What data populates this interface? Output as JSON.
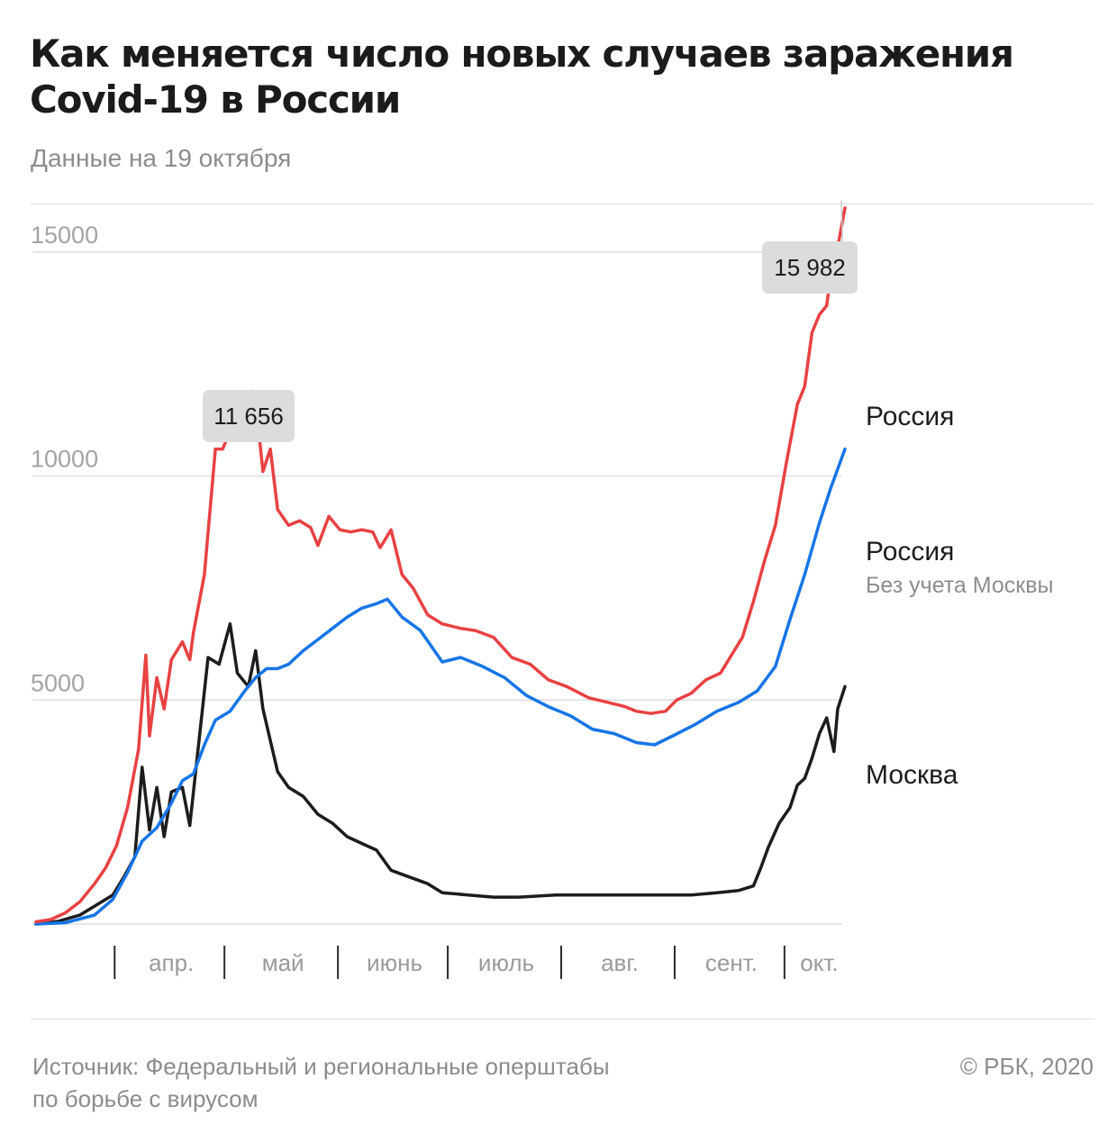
{
  "title_lines": [
    "Как меняется число новых случаев заражения",
    "Covid-19 в России"
  ],
  "subtitle": "Данные на 19 октября",
  "source_lines": [
    "Источник: Федеральный и региональные оперштабы",
    "по борьбе с вирусом"
  ],
  "copyright": "© РБК, 2020",
  "chart_data": {
    "type": "line",
    "title": "Как меняется число новых случаев заражения Covid-19 в России",
    "subtitle": "Данные на 19 октября",
    "ylim": [
      0,
      16000
    ],
    "y_ticks": [
      {
        "value": 5000,
        "label": "5000"
      },
      {
        "value": 10000,
        "label": "10000"
      },
      {
        "value": 15000,
        "label": "15000"
      }
    ],
    "grid": true,
    "x_range": [
      "2020-03-12",
      "2020-10-19"
    ],
    "month_labels": [
      {
        "label": "апр.",
        "start": "2020-04-01",
        "end": "2020-05-01"
      },
      {
        "label": "май",
        "start": "2020-05-01",
        "end": "2020-06-01"
      },
      {
        "label": "июнь",
        "start": "2020-06-01",
        "end": "2020-07-01"
      },
      {
        "label": "июль",
        "start": "2020-07-01",
        "end": "2020-08-01"
      },
      {
        "label": "авг.",
        "start": "2020-08-01",
        "end": "2020-09-01"
      },
      {
        "label": "сент.",
        "start": "2020-09-01",
        "end": "2020-10-01"
      },
      {
        "label": "окт.",
        "start": "2020-10-01",
        "end": "2020-10-19"
      }
    ],
    "series": [
      {
        "name": "Россия",
        "sublabel": "",
        "color": "#e84142",
        "points": [
          [
            "2020-03-12",
            50
          ],
          [
            "2020-03-16",
            100
          ],
          [
            "2020-03-20",
            250
          ],
          [
            "2020-03-24",
            500
          ],
          [
            "2020-03-28",
            900
          ],
          [
            "2020-03-31",
            1250
          ],
          [
            "2020-04-03",
            1750
          ],
          [
            "2020-04-06",
            2600
          ],
          [
            "2020-04-09",
            3900
          ],
          [
            "2020-04-11",
            6000
          ],
          [
            "2020-04-12",
            4200
          ],
          [
            "2020-04-14",
            5500
          ],
          [
            "2020-04-16",
            4800
          ],
          [
            "2020-04-18",
            5900
          ],
          [
            "2020-04-21",
            6300
          ],
          [
            "2020-04-23",
            5900
          ],
          [
            "2020-04-24",
            6500
          ],
          [
            "2020-04-27",
            7800
          ],
          [
            "2020-04-30",
            10600
          ],
          [
            "2020-05-02",
            10600
          ],
          [
            "2020-05-05",
            11200
          ],
          [
            "2020-05-07",
            10800
          ],
          [
            "2020-05-09",
            11300
          ],
          [
            "2020-05-11",
            11656
          ],
          [
            "2020-05-13",
            10100
          ],
          [
            "2020-05-15",
            10600
          ],
          [
            "2020-05-17",
            9250
          ],
          [
            "2020-05-20",
            8900
          ],
          [
            "2020-05-23",
            9000
          ],
          [
            "2020-05-26",
            8850
          ],
          [
            "2020-05-28",
            8450
          ],
          [
            "2020-05-31",
            9100
          ],
          [
            "2020-06-03",
            8800
          ],
          [
            "2020-06-06",
            8750
          ],
          [
            "2020-06-09",
            8800
          ],
          [
            "2020-06-12",
            8750
          ],
          [
            "2020-06-14",
            8400
          ],
          [
            "2020-06-17",
            8800
          ],
          [
            "2020-06-20",
            7800
          ],
          [
            "2020-06-23",
            7500
          ],
          [
            "2020-06-27",
            6900
          ],
          [
            "2020-07-01",
            6700
          ],
          [
            "2020-07-06",
            6600
          ],
          [
            "2020-07-10",
            6550
          ],
          [
            "2020-07-15",
            6400
          ],
          [
            "2020-07-20",
            5950
          ],
          [
            "2020-07-25",
            5800
          ],
          [
            "2020-07-30",
            5450
          ],
          [
            "2020-08-04",
            5300
          ],
          [
            "2020-08-10",
            5050
          ],
          [
            "2020-08-15",
            4950
          ],
          [
            "2020-08-20",
            4850
          ],
          [
            "2020-08-23",
            4750
          ],
          [
            "2020-08-27",
            4700
          ],
          [
            "2020-08-31",
            4750
          ],
          [
            "2020-09-03",
            5000
          ],
          [
            "2020-09-07",
            5150
          ],
          [
            "2020-09-11",
            5450
          ],
          [
            "2020-09-15",
            5600
          ],
          [
            "2020-09-18",
            6000
          ],
          [
            "2020-09-21",
            6400
          ],
          [
            "2020-09-24",
            7200
          ],
          [
            "2020-09-27",
            8100
          ],
          [
            "2020-09-30",
            8900
          ],
          [
            "2020-10-03",
            10300
          ],
          [
            "2020-10-06",
            11600
          ],
          [
            "2020-10-08",
            12000
          ],
          [
            "2020-10-10",
            13200
          ],
          [
            "2020-10-12",
            13600
          ],
          [
            "2020-10-14",
            13800
          ],
          [
            "2020-10-15",
            14400
          ],
          [
            "2020-10-17",
            15100
          ],
          [
            "2020-10-19",
            15982
          ]
        ]
      },
      {
        "name": "Россия",
        "sublabel": "Без учета Москвы",
        "color": "#1775e6",
        "points": [
          [
            "2020-03-12",
            0
          ],
          [
            "2020-03-20",
            30
          ],
          [
            "2020-03-28",
            200
          ],
          [
            "2020-04-02",
            550
          ],
          [
            "2020-04-06",
            1150
          ],
          [
            "2020-04-10",
            1850
          ],
          [
            "2020-04-14",
            2150
          ],
          [
            "2020-04-18",
            2700
          ],
          [
            "2020-04-21",
            3200
          ],
          [
            "2020-04-24",
            3350
          ],
          [
            "2020-04-27",
            4000
          ],
          [
            "2020-04-30",
            4550
          ],
          [
            "2020-05-04",
            4750
          ],
          [
            "2020-05-08",
            5200
          ],
          [
            "2020-05-11",
            5500
          ],
          [
            "2020-05-14",
            5700
          ],
          [
            "2020-05-17",
            5700
          ],
          [
            "2020-05-20",
            5800
          ],
          [
            "2020-05-24",
            6100
          ],
          [
            "2020-05-28",
            6350
          ],
          [
            "2020-06-01",
            6600
          ],
          [
            "2020-06-05",
            6850
          ],
          [
            "2020-06-09",
            7050
          ],
          [
            "2020-06-13",
            7150
          ],
          [
            "2020-06-16",
            7250
          ],
          [
            "2020-06-20",
            6850
          ],
          [
            "2020-06-25",
            6550
          ],
          [
            "2020-07-01",
            5850
          ],
          [
            "2020-07-06",
            5950
          ],
          [
            "2020-07-12",
            5750
          ],
          [
            "2020-07-18",
            5500
          ],
          [
            "2020-07-24",
            5100
          ],
          [
            "2020-07-30",
            4850
          ],
          [
            "2020-08-05",
            4650
          ],
          [
            "2020-08-11",
            4350
          ],
          [
            "2020-08-17",
            4250
          ],
          [
            "2020-08-23",
            4050
          ],
          [
            "2020-08-28",
            4000
          ],
          [
            "2020-09-02",
            4200
          ],
          [
            "2020-09-08",
            4450
          ],
          [
            "2020-09-14",
            4750
          ],
          [
            "2020-09-20",
            4950
          ],
          [
            "2020-09-25",
            5200
          ],
          [
            "2020-09-30",
            5750
          ],
          [
            "2020-10-04",
            6800
          ],
          [
            "2020-10-08",
            7800
          ],
          [
            "2020-10-12",
            8950
          ],
          [
            "2020-10-15",
            9700
          ],
          [
            "2020-10-19",
            10600
          ]
        ]
      },
      {
        "name": "Москва",
        "sublabel": "",
        "color": "#1c1c1c",
        "points": [
          [
            "2020-03-12",
            0
          ],
          [
            "2020-03-18",
            60
          ],
          [
            "2020-03-24",
            200
          ],
          [
            "2020-03-29",
            450
          ],
          [
            "2020-04-02",
            650
          ],
          [
            "2020-04-05",
            1050
          ],
          [
            "2020-04-08",
            1500
          ],
          [
            "2020-04-10",
            3500
          ],
          [
            "2020-04-12",
            2100
          ],
          [
            "2020-04-14",
            3050
          ],
          [
            "2020-04-16",
            1950
          ],
          [
            "2020-04-18",
            2950
          ],
          [
            "2020-04-21",
            3050
          ],
          [
            "2020-04-23",
            2200
          ],
          [
            "2020-04-25",
            3700
          ],
          [
            "2020-04-28",
            5950
          ],
          [
            "2020-05-01",
            5800
          ],
          [
            "2020-05-04",
            6700
          ],
          [
            "2020-05-06",
            5600
          ],
          [
            "2020-05-09",
            5300
          ],
          [
            "2020-05-11",
            6100
          ],
          [
            "2020-05-13",
            4800
          ],
          [
            "2020-05-17",
            3400
          ],
          [
            "2020-05-20",
            3050
          ],
          [
            "2020-05-24",
            2850
          ],
          [
            "2020-05-28",
            2450
          ],
          [
            "2020-06-01",
            2250
          ],
          [
            "2020-06-05",
            1950
          ],
          [
            "2020-06-09",
            1800
          ],
          [
            "2020-06-13",
            1650
          ],
          [
            "2020-06-17",
            1200
          ],
          [
            "2020-06-22",
            1050
          ],
          [
            "2020-06-27",
            900
          ],
          [
            "2020-07-01",
            700
          ],
          [
            "2020-07-08",
            650
          ],
          [
            "2020-07-15",
            600
          ],
          [
            "2020-07-22",
            600
          ],
          [
            "2020-08-01",
            650
          ],
          [
            "2020-08-10",
            650
          ],
          [
            "2020-08-20",
            650
          ],
          [
            "2020-08-31",
            650
          ],
          [
            "2020-09-07",
            650
          ],
          [
            "2020-09-14",
            700
          ],
          [
            "2020-09-20",
            750
          ],
          [
            "2020-09-24",
            850
          ],
          [
            "2020-09-26",
            1250
          ],
          [
            "2020-09-28",
            1700
          ],
          [
            "2020-10-01",
            2250
          ],
          [
            "2020-10-04",
            2600
          ],
          [
            "2020-10-06",
            3100
          ],
          [
            "2020-10-08",
            3250
          ],
          [
            "2020-10-10",
            3700
          ],
          [
            "2020-10-12",
            4250
          ],
          [
            "2020-10-14",
            4600
          ],
          [
            "2020-10-16",
            3850
          ],
          [
            "2020-10-17",
            4800
          ],
          [
            "2020-10-19",
            5300
          ]
        ]
      }
    ],
    "annotations": [
      {
        "text": "11 656",
        "date": "2020-05-11",
        "value": 11656
      },
      {
        "text": "15 982",
        "date": "2020-10-19",
        "value": 15982
      }
    ]
  }
}
